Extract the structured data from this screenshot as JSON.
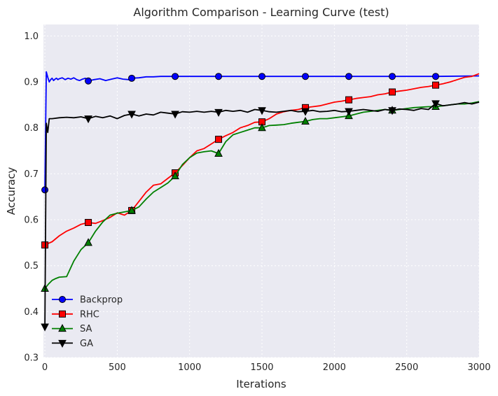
{
  "chart_data": {
    "type": "line",
    "title": "Algorithm Comparison - Learning Curve (test)",
    "xlabel": "Iterations",
    "ylabel": "Accuracy",
    "xlim": [
      -10,
      3000
    ],
    "ylim": [
      0.3,
      1.025
    ],
    "xticks": [
      0,
      500,
      1000,
      1500,
      2000,
      2500,
      3000
    ],
    "yticks": [
      0.3,
      0.4,
      0.5,
      0.6,
      0.7,
      0.8,
      0.9,
      1.0
    ],
    "grid": true,
    "legend_position": "lower-left",
    "series": [
      {
        "name": "Backprop",
        "color": "#0000ff",
        "marker": "circle",
        "x": [
          0,
          10,
          20,
          30,
          40,
          50,
          60,
          70,
          80,
          90,
          100,
          120,
          140,
          160,
          180,
          200,
          220,
          240,
          260,
          280,
          300,
          340,
          380,
          420,
          460,
          500,
          540,
          580,
          600,
          650,
          700,
          750,
          800,
          900,
          1000,
          1200,
          1500,
          1800,
          2100,
          2400,
          2700,
          3000
        ],
        "y": [
          0.665,
          0.922,
          0.91,
          0.9,
          0.905,
          0.908,
          0.903,
          0.906,
          0.908,
          0.905,
          0.907,
          0.909,
          0.905,
          0.908,
          0.906,
          0.909,
          0.905,
          0.903,
          0.906,
          0.908,
          0.902,
          0.905,
          0.907,
          0.903,
          0.906,
          0.909,
          0.906,
          0.905,
          0.908,
          0.909,
          0.911,
          0.911,
          0.912,
          0.912,
          0.912,
          0.912,
          0.912,
          0.912,
          0.912,
          0.912,
          0.912,
          0.913
        ],
        "marker_x": [
          0,
          300,
          600,
          900,
          1200,
          1500,
          1800,
          2100,
          2400,
          2700
        ],
        "marker_y": [
          0.665,
          0.902,
          0.908,
          0.912,
          0.912,
          0.912,
          0.912,
          0.912,
          0.912,
          0.912
        ]
      },
      {
        "name": "RHC",
        "color": "#ff0000",
        "marker": "square",
        "x": [
          0,
          50,
          100,
          150,
          200,
          250,
          300,
          350,
          400,
          450,
          500,
          550,
          600,
          650,
          700,
          750,
          800,
          850,
          900,
          950,
          1000,
          1050,
          1100,
          1150,
          1200,
          1250,
          1300,
          1350,
          1400,
          1450,
          1500,
          1550,
          1600,
          1650,
          1700,
          1750,
          1800,
          1850,
          1900,
          1950,
          2000,
          2050,
          2100,
          2150,
          2200,
          2250,
          2300,
          2350,
          2400,
          2450,
          2500,
          2550,
          2600,
          2650,
          2700,
          2750,
          2800,
          2850,
          2900,
          2950,
          3000
        ],
        "y": [
          0.545,
          0.552,
          0.565,
          0.575,
          0.582,
          0.59,
          0.594,
          0.592,
          0.598,
          0.605,
          0.615,
          0.61,
          0.62,
          0.64,
          0.66,
          0.675,
          0.678,
          0.69,
          0.702,
          0.718,
          0.735,
          0.75,
          0.755,
          0.765,
          0.775,
          0.783,
          0.79,
          0.8,
          0.805,
          0.812,
          0.813,
          0.82,
          0.83,
          0.835,
          0.838,
          0.84,
          0.844,
          0.846,
          0.848,
          0.852,
          0.856,
          0.858,
          0.861,
          0.864,
          0.866,
          0.868,
          0.872,
          0.874,
          0.878,
          0.88,
          0.882,
          0.885,
          0.888,
          0.89,
          0.893,
          0.896,
          0.9,
          0.905,
          0.91,
          0.912,
          0.918
        ],
        "marker_x": [
          0,
          300,
          600,
          900,
          1200,
          1500,
          1800,
          2100,
          2400,
          2700
        ],
        "marker_y": [
          0.545,
          0.594,
          0.62,
          0.702,
          0.775,
          0.813,
          0.844,
          0.861,
          0.878,
          0.893
        ]
      },
      {
        "name": "SA",
        "color": "#008000",
        "marker": "triangle-up",
        "x": [
          0,
          25,
          50,
          75,
          100,
          150,
          200,
          250,
          300,
          350,
          400,
          450,
          500,
          550,
          600,
          650,
          700,
          750,
          800,
          850,
          900,
          950,
          1000,
          1050,
          1100,
          1150,
          1200,
          1250,
          1300,
          1350,
          1400,
          1450,
          1500,
          1550,
          1600,
          1650,
          1700,
          1750,
          1800,
          1850,
          1900,
          1950,
          2000,
          2050,
          2100,
          2150,
          2200,
          2250,
          2300,
          2350,
          2400,
          2450,
          2500,
          2550,
          2600,
          2650,
          2700,
          2750,
          2800,
          2850,
          2900,
          2950,
          3000
        ],
        "y": [
          0.45,
          0.46,
          0.468,
          0.472,
          0.475,
          0.476,
          0.51,
          0.535,
          0.55,
          0.575,
          0.595,
          0.61,
          0.614,
          0.617,
          0.62,
          0.628,
          0.645,
          0.66,
          0.67,
          0.68,
          0.695,
          0.72,
          0.735,
          0.745,
          0.748,
          0.75,
          0.744,
          0.77,
          0.785,
          0.79,
          0.795,
          0.8,
          0.8,
          0.805,
          0.806,
          0.807,
          0.81,
          0.812,
          0.814,
          0.818,
          0.82,
          0.82,
          0.822,
          0.824,
          0.826,
          0.83,
          0.834,
          0.836,
          0.838,
          0.84,
          0.838,
          0.84,
          0.842,
          0.844,
          0.845,
          0.846,
          0.846,
          0.848,
          0.85,
          0.852,
          0.852,
          0.854,
          0.857
        ],
        "marker_x": [
          0,
          300,
          600,
          900,
          1200,
          1500,
          1800,
          2100,
          2400,
          2700
        ],
        "marker_y": [
          0.45,
          0.55,
          0.62,
          0.695,
          0.744,
          0.8,
          0.814,
          0.826,
          0.838,
          0.846
        ]
      },
      {
        "name": "GA",
        "color": "#000000",
        "marker": "triangle-down",
        "x": [
          0,
          10,
          20,
          30,
          40,
          50,
          100,
          150,
          200,
          250,
          300,
          350,
          400,
          450,
          500,
          550,
          600,
          650,
          700,
          750,
          800,
          850,
          900,
          950,
          1000,
          1050,
          1100,
          1150,
          1200,
          1250,
          1300,
          1350,
          1400,
          1450,
          1500,
          1550,
          1600,
          1650,
          1700,
          1750,
          1800,
          1850,
          1900,
          1950,
          2000,
          2050,
          2100,
          2150,
          2200,
          2250,
          2300,
          2350,
          2400,
          2450,
          2500,
          2550,
          2600,
          2650,
          2700,
          2750,
          2800,
          2850,
          2900,
          2950,
          3000
        ],
        "y": [
          0.367,
          0.81,
          0.79,
          0.82,
          0.82,
          0.82,
          0.822,
          0.823,
          0.822,
          0.824,
          0.82,
          0.825,
          0.822,
          0.826,
          0.82,
          0.827,
          0.83,
          0.826,
          0.83,
          0.828,
          0.834,
          0.832,
          0.83,
          0.835,
          0.834,
          0.836,
          0.834,
          0.836,
          0.834,
          0.838,
          0.836,
          0.838,
          0.834,
          0.84,
          0.838,
          0.835,
          0.834,
          0.836,
          0.838,
          0.835,
          0.836,
          0.838,
          0.835,
          0.836,
          0.838,
          0.835,
          0.836,
          0.838,
          0.84,
          0.838,
          0.836,
          0.84,
          0.838,
          0.841,
          0.84,
          0.838,
          0.842,
          0.84,
          0.853,
          0.848,
          0.85,
          0.852,
          0.855,
          0.852,
          0.856
        ],
        "marker_x": [
          0,
          300,
          600,
          900,
          1200,
          1500,
          1800,
          2100,
          2400,
          2700
        ],
        "marker_y": [
          0.367,
          0.82,
          0.83,
          0.83,
          0.834,
          0.838,
          0.836,
          0.836,
          0.838,
          0.853
        ]
      }
    ]
  }
}
